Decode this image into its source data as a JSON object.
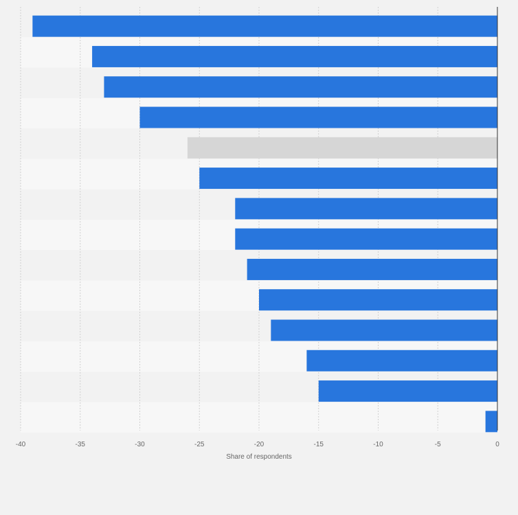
{
  "chart_data": {
    "type": "bar",
    "orientation": "horizontal",
    "title": "",
    "xlabel": "Share of respondents",
    "ylabel": "",
    "xlim": [
      -40,
      0
    ],
    "xticks": [
      -40,
      -35,
      -30,
      -25,
      -20,
      -15,
      -10,
      -5,
      0
    ],
    "grid": true,
    "values": [
      -39,
      -34,
      -33,
      -30,
      -26,
      -25,
      -22,
      -22,
      -21,
      -20,
      -19,
      -16,
      -15,
      -1
    ],
    "highlight_index": 4,
    "colors": {
      "bar": "#2876dd",
      "highlight": "#d6d6d6",
      "band_a": "#f2f2f2",
      "band_b": "#f7f7f7",
      "grid": "#d0d0d0",
      "axis": "#333333"
    }
  }
}
